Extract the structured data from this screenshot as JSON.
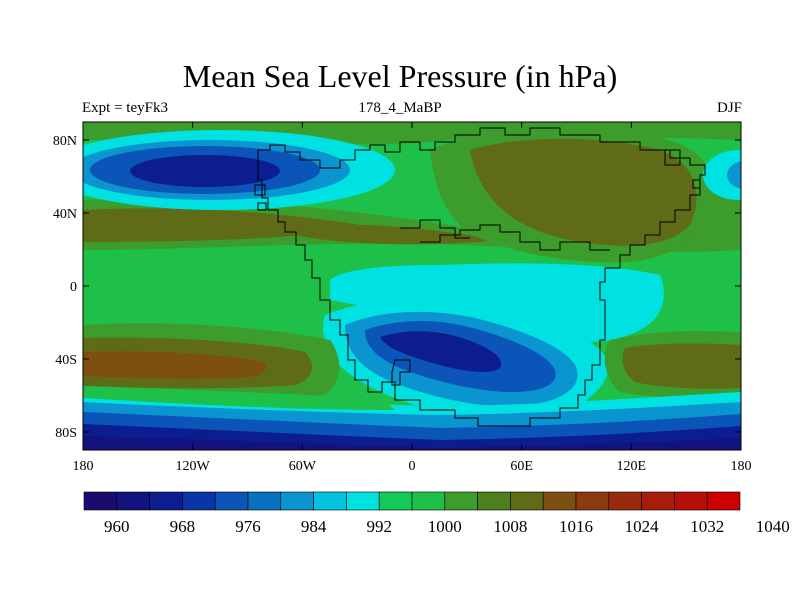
{
  "title": "Mean Sea Level Pressure (in hPa)",
  "subtitle_left": "Expt = teyFk3",
  "subtitle_center": "178_4_MaBP",
  "subtitle_right": "DJF",
  "map": {
    "lon_ticks": [
      "180",
      "120W",
      "60W",
      "0",
      "60E",
      "120E",
      "180"
    ],
    "lat_ticks": [
      "80N",
      "40N",
      "0",
      "40S",
      "80S"
    ]
  },
  "colorbar": {
    "colors": [
      "#1a0b6e",
      "#12137f",
      "#0c1d8f",
      "#0a35a8",
      "#0b55b8",
      "#0a70c0",
      "#0a94d0",
      "#02c4e0",
      "#00e2e2",
      "#14c85a",
      "#1ec04a",
      "#3c9d2c",
      "#4d7f1e",
      "#5f6b16",
      "#7d5012",
      "#8d3a10",
      "#9a2a0e",
      "#a81c0c",
      "#b80e08",
      "#cc0000"
    ],
    "labels": [
      "960",
      "968",
      "976",
      "984",
      "992",
      "1000",
      "1008",
      "1016",
      "1024",
      "1032",
      "1040"
    ]
  },
  "palette": {
    "bg_green": "#1ec04a",
    "mid_green": "#3c9d2c",
    "olive": "#5f6b16",
    "brown": "#7d5012",
    "cyan": "#00e2e2",
    "light_blue": "#0a94d0",
    "blue": "#0a55b8",
    "dark_blue": "#0c1d8f",
    "navy": "#12137f",
    "coast": "#000000"
  }
}
